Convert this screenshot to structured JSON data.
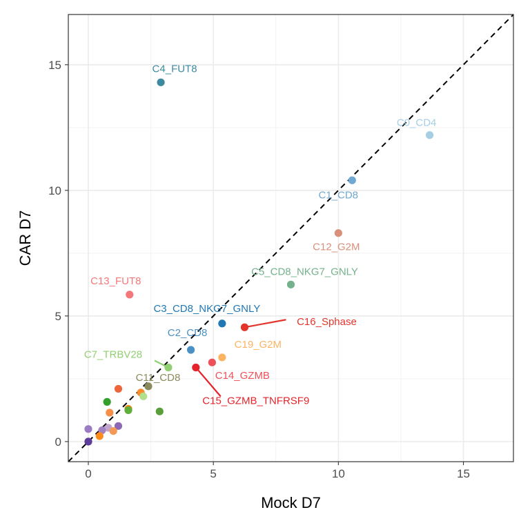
{
  "chart_data": {
    "type": "scatter",
    "xlabel": "Mock D7",
    "ylabel": "CAR D7",
    "xlim": [
      -0.8,
      17.0
    ],
    "ylim": [
      -0.8,
      17.0
    ],
    "x_ticks": [
      0,
      5,
      10,
      15
    ],
    "y_ticks": [
      0,
      5,
      10,
      15
    ],
    "x_tick_labels": [
      "0",
      "5",
      "10",
      "15"
    ],
    "y_tick_labels": [
      "0",
      "5",
      "10",
      "15"
    ],
    "grid": true,
    "diagonal_reference_line": "dashed y = x",
    "labeled_points": [
      {
        "label": "C0_CD4",
        "x": 13.65,
        "y": 12.2,
        "color": "#a6cee3"
      },
      {
        "label": "C1_CD8",
        "x": 10.55,
        "y": 10.4,
        "color": "#6fa8d2"
      },
      {
        "label": "C2_CD8",
        "x": 4.1,
        "y": 3.65,
        "color": "#4a90c5"
      },
      {
        "label": "C3_CD8_NKG7_GNLY",
        "x": 5.35,
        "y": 4.7,
        "color": "#1f78b4"
      },
      {
        "label": "C4_FUT8",
        "x": 2.9,
        "y": 14.3,
        "color": "#3d8a9e"
      },
      {
        "label": "C5_CD8_NKG7_GNLY",
        "x": 8.1,
        "y": 6.25,
        "color": "#74b28c"
      },
      {
        "label": "C7_TRBV28",
        "x": 3.2,
        "y": 2.95,
        "color": "#92cf72"
      },
      {
        "label": "C11_CD8",
        "x": 2.4,
        "y": 2.2,
        "color": "#8a8a5c"
      },
      {
        "label": "C12_G2M",
        "x": 10.0,
        "y": 8.3,
        "color": "#d9907a"
      },
      {
        "label": "C13_FUT8",
        "x": 1.65,
        "y": 5.85,
        "color": "#f4787a"
      },
      {
        "label": "C14_GZMB",
        "x": 4.95,
        "y": 3.15,
        "color": "#ed5058"
      },
      {
        "label": "C15_GZMB_TNFRSF9",
        "x": 4.3,
        "y": 2.95,
        "color": "#e3242b"
      },
      {
        "label": "C16_Sphase",
        "x": 6.25,
        "y": 4.55,
        "color": "#e3342c"
      },
      {
        "label": "C19_G2M",
        "x": 5.35,
        "y": 3.35,
        "color": "#fdb462"
      }
    ],
    "unlabeled_points": [
      {
        "x": 1.2,
        "y": 2.1,
        "color": "#f0643c"
      },
      {
        "x": 2.1,
        "y": 1.95,
        "color": "#f98c2d"
      },
      {
        "x": 2.2,
        "y": 1.8,
        "color": "#b2df8a"
      },
      {
        "x": 0.75,
        "y": 1.58,
        "color": "#33a02c"
      },
      {
        "x": 1.6,
        "y": 1.3,
        "color": "#ff7f00"
      },
      {
        "x": 1.6,
        "y": 1.25,
        "color": "#5faf3c"
      },
      {
        "x": 0.85,
        "y": 1.15,
        "color": "#f58f4a"
      },
      {
        "x": 2.85,
        "y": 1.2,
        "color": "#5a9e3c"
      },
      {
        "x": 1.2,
        "y": 0.62,
        "color": "#8e67b6"
      },
      {
        "x": 0.8,
        "y": 0.55,
        "color": "#c2a5cf"
      },
      {
        "x": 0.55,
        "y": 0.45,
        "color": "#a283c0"
      },
      {
        "x": 0.0,
        "y": 0.5,
        "color": "#9b7cc2"
      },
      {
        "x": 1.0,
        "y": 0.42,
        "color": "#f29a56"
      },
      {
        "x": 0.45,
        "y": 0.22,
        "color": "#ff8c1a"
      },
      {
        "x": 0.0,
        "y": 0.0,
        "color": "#5e3c99"
      }
    ]
  }
}
